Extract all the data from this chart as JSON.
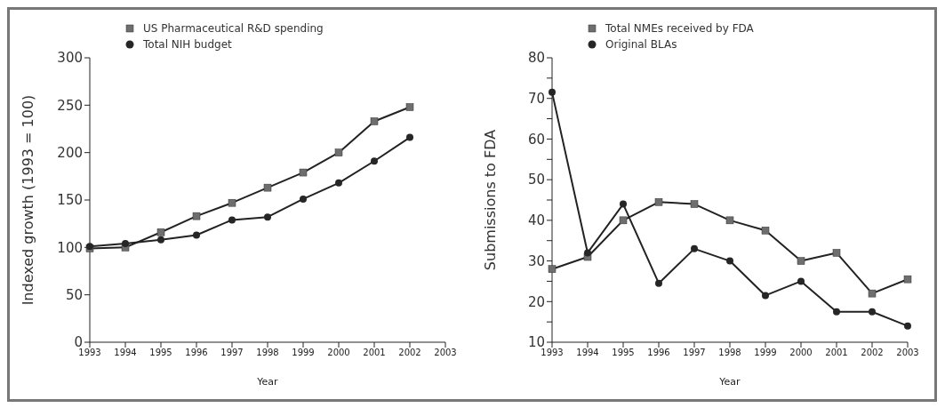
{
  "chart_data": [
    {
      "type": "line",
      "categories": [
        "1993",
        "1994",
        "1995",
        "1996",
        "1997",
        "1998",
        "1999",
        "2000",
        "2001",
        "2002",
        "2003"
      ],
      "xlabel": "Year",
      "ylabel": "Indexed growth (1993 = 100)",
      "ylim": [
        0,
        300
      ],
      "yticks": [
        0,
        50,
        100,
        150,
        200,
        250,
        300
      ],
      "grid": false,
      "legend": "top left",
      "series": [
        {
          "name": "US Pharmaceutical R&D spending",
          "color": "#6e6e6e",
          "marker": "square",
          "values": [
            99,
            100,
            116,
            133,
            147,
            163,
            179,
            200,
            233,
            248,
            null
          ]
        },
        {
          "name": "Total NIH budget",
          "color": "#262626",
          "marker": "circle",
          "values": [
            101,
            104,
            108,
            113,
            129,
            132,
            151,
            168,
            191,
            216,
            null
          ]
        }
      ]
    },
    {
      "type": "line",
      "categories": [
        "1993",
        "1994",
        "1995",
        "1996",
        "1997",
        "1998",
        "1999",
        "2000",
        "2001",
        "2002",
        "2003"
      ],
      "xlabel": "Year",
      "ylabel": "Submissions to FDA",
      "ylim": [
        10,
        80
      ],
      "yticks": [
        10,
        {
          "value": 15,
          "label": null
        },
        20,
        {
          "value": 25,
          "label": null
        },
        30,
        {
          "value": 35,
          "label": null
        },
        40,
        {
          "value": 45,
          "label": null
        },
        50,
        {
          "value": 55,
          "label": null
        },
        60,
        {
          "value": 65,
          "label": null
        },
        70,
        {
          "value": 75,
          "label": null
        },
        80
      ],
      "grid": false,
      "legend": "top left",
      "series": [
        {
          "name": "Total NMEs received by FDA",
          "color": "#6e6e6e",
          "marker": "square",
          "values": [
            28,
            31,
            40,
            44.5,
            44,
            40,
            37.5,
            30,
            32,
            22,
            25.5
          ]
        },
        {
          "name": "Original BLAs",
          "color": "#262626",
          "marker": "circle",
          "values": [
            71.5,
            32,
            44,
            24.5,
            33,
            30,
            21.5,
            25,
            17.5,
            17.5,
            14
          ]
        }
      ]
    }
  ]
}
